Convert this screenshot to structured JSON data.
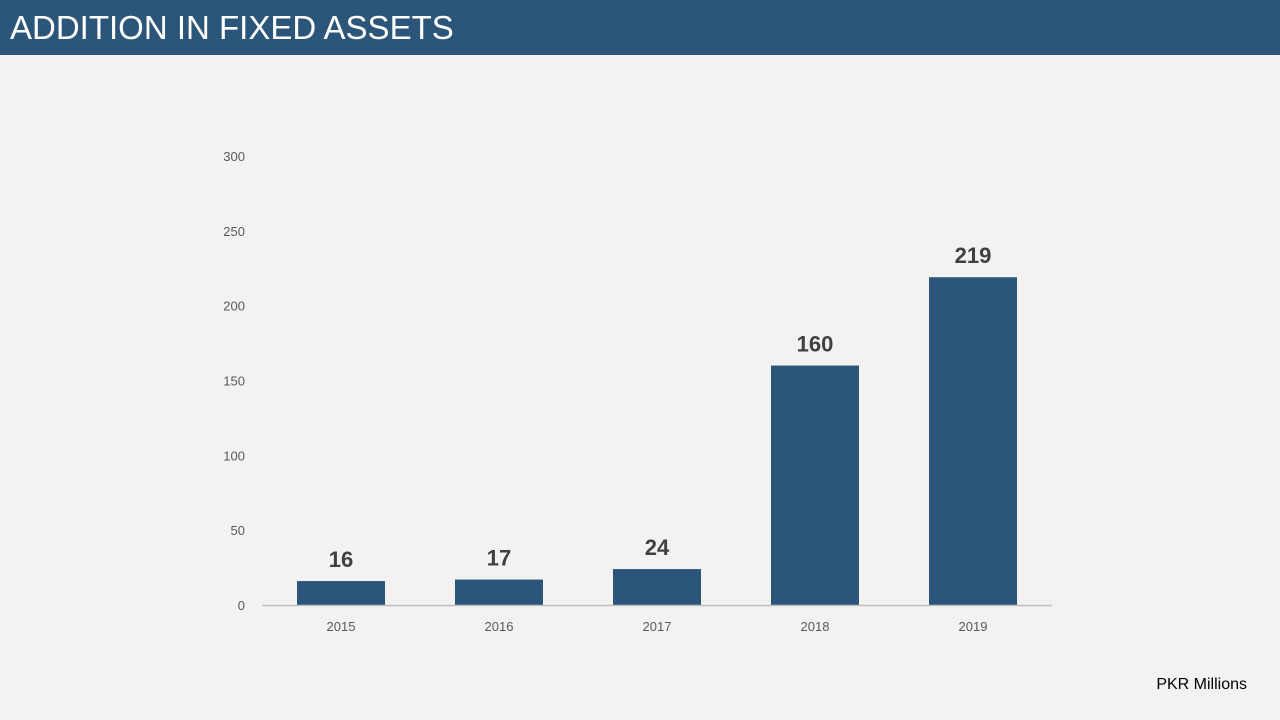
{
  "header": {
    "title": "ADDITION IN FIXED ASSETS"
  },
  "unit_note": "PKR Millions",
  "colors": {
    "title_bar": "#2c5679",
    "bar": "#2c5679",
    "background": "#f2f2f2",
    "axis_text": "#595959",
    "data_label": "#404040",
    "axis_line": "#bfbfbf"
  },
  "chart_data": {
    "type": "bar",
    "categories": [
      "2015",
      "2016",
      "2017",
      "2018",
      "2019"
    ],
    "values": [
      16,
      17,
      24,
      160,
      219
    ],
    "data_labels": [
      "16",
      "17",
      "24",
      "160",
      "219"
    ],
    "yticks": [
      0,
      50,
      100,
      150,
      200,
      250,
      300
    ],
    "ylim": [
      0,
      300
    ],
    "grid": false,
    "legend": "none"
  }
}
